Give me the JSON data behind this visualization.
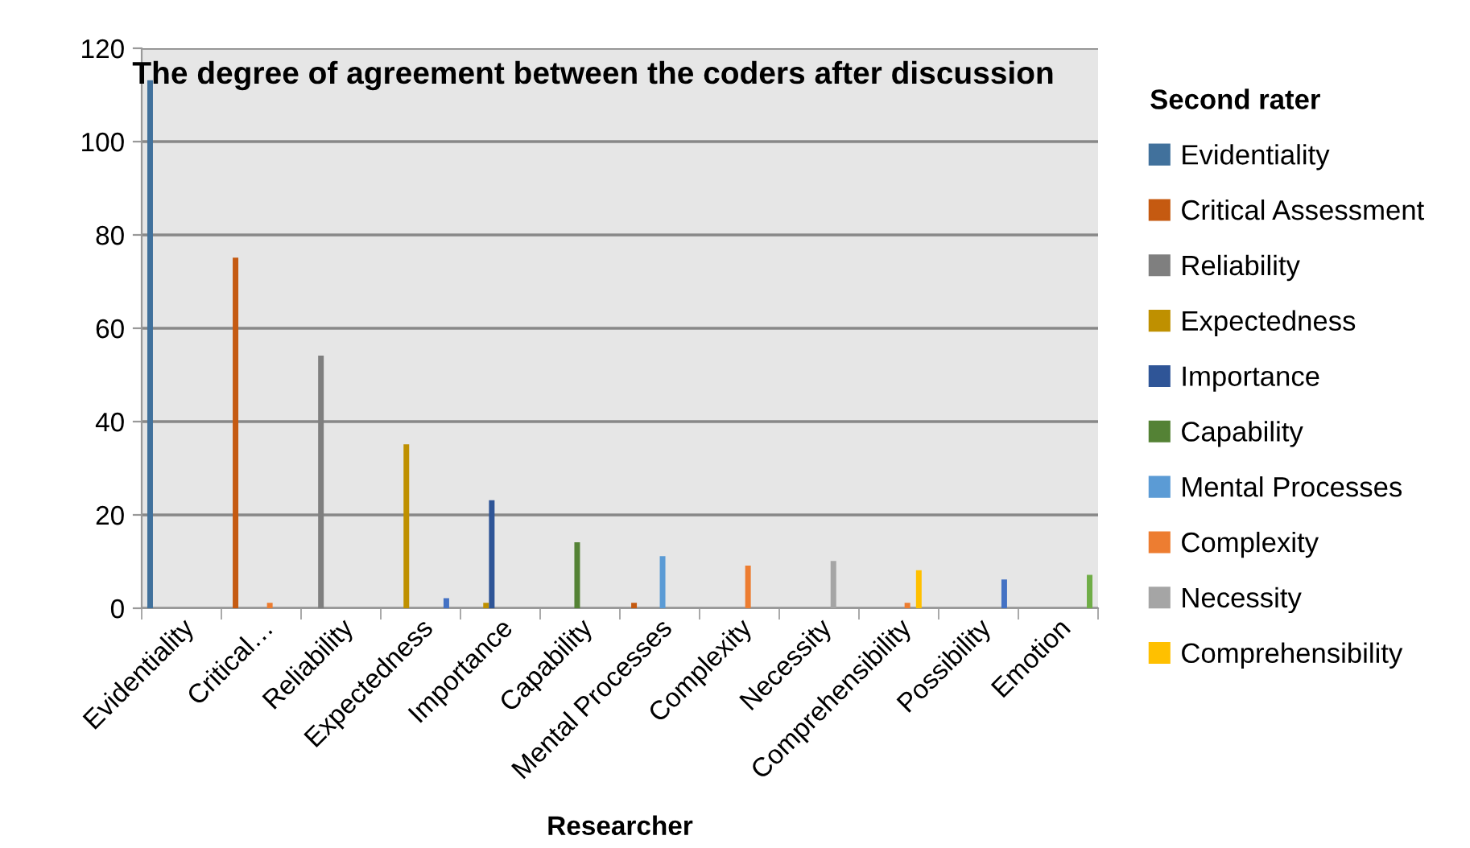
{
  "chart_data": {
    "type": "bar",
    "title": "The degree of agreement between the coders after discussion",
    "xlabel": "Researcher",
    "legend_title": "Second rater",
    "categories": [
      "Evidentiality",
      "Critical…",
      "Reliability",
      "Expectedness",
      "Importance",
      "Capability",
      "Mental Processes",
      "Complexity",
      "Necessity",
      "Comprehensibility",
      "Possibility",
      "Emotion"
    ],
    "series": [
      {
        "name": "Evidentiality",
        "color": "#41719c",
        "values": [
          113,
          null,
          null,
          null,
          null,
          null,
          null,
          null,
          null,
          null,
          null,
          null
        ]
      },
      {
        "name": "Critical Assessment",
        "color": "#c55a11",
        "values": [
          null,
          75,
          null,
          null,
          null,
          null,
          1,
          null,
          null,
          null,
          null,
          null
        ]
      },
      {
        "name": "Reliability",
        "color": "#7f7f7f",
        "values": [
          null,
          null,
          54,
          null,
          null,
          null,
          null,
          null,
          null,
          null,
          null,
          null
        ]
      },
      {
        "name": "Expectedness",
        "color": "#bf9000",
        "values": [
          null,
          null,
          null,
          35,
          1,
          null,
          null,
          null,
          null,
          null,
          null,
          null
        ]
      },
      {
        "name": "Importance",
        "color": "#2f5597",
        "values": [
          null,
          null,
          null,
          null,
          23,
          null,
          null,
          null,
          null,
          null,
          null,
          null
        ]
      },
      {
        "name": "Capability",
        "color": "#548235",
        "values": [
          null,
          null,
          null,
          null,
          null,
          14,
          null,
          null,
          null,
          null,
          null,
          null
        ]
      },
      {
        "name": "Mental Processes",
        "color": "#5b9bd5",
        "values": [
          null,
          null,
          null,
          null,
          null,
          null,
          11,
          null,
          null,
          null,
          null,
          null
        ]
      },
      {
        "name": "Complexity",
        "color": "#ed7d31",
        "values": [
          null,
          1,
          null,
          null,
          null,
          null,
          null,
          9,
          null,
          1,
          null,
          null
        ]
      },
      {
        "name": "Necessity",
        "color": "#a5a5a5",
        "values": [
          null,
          null,
          null,
          null,
          null,
          null,
          null,
          null,
          10,
          null,
          null,
          null
        ]
      },
      {
        "name": "Comprehensibility",
        "color": "#ffc000",
        "values": [
          null,
          null,
          null,
          null,
          null,
          null,
          null,
          null,
          null,
          8,
          null,
          null
        ]
      },
      {
        "color": "#4472c4",
        "values": [
          null,
          null,
          null,
          2,
          null,
          null,
          null,
          null,
          null,
          null,
          6,
          null
        ]
      },
      {
        "color": "#70ad47",
        "values": [
          null,
          null,
          null,
          null,
          null,
          null,
          null,
          null,
          null,
          null,
          null,
          7
        ]
      }
    ],
    "ylim": [
      0,
      120
    ],
    "yticks": [
      0,
      20,
      40,
      60,
      80,
      100,
      120
    ],
    "grid": "y",
    "legend": "right"
  }
}
